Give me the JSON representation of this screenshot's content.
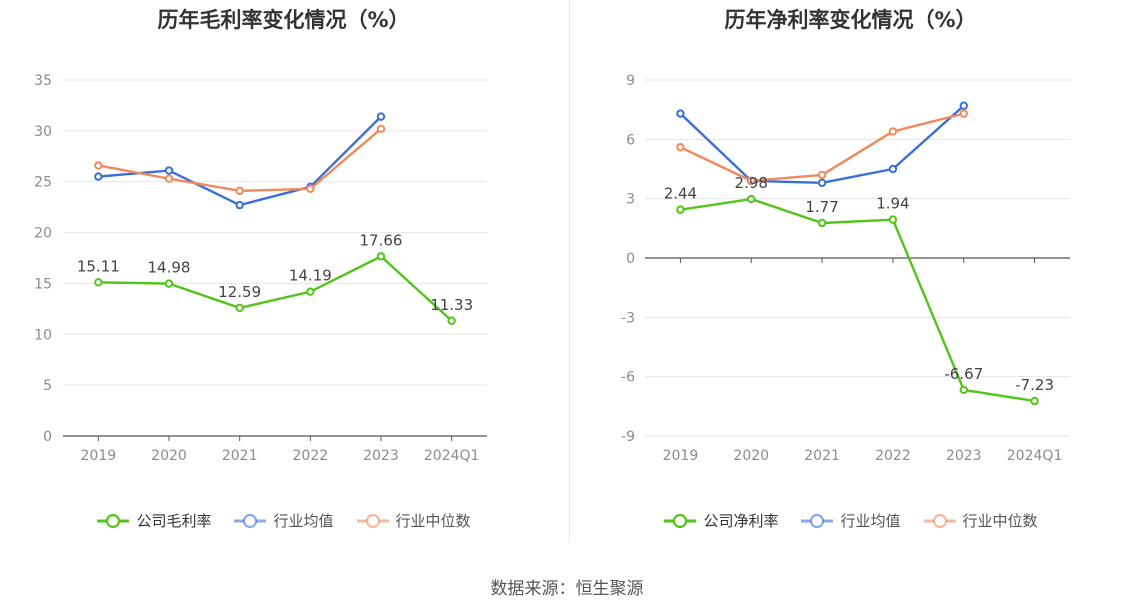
{
  "footer": {
    "source": "数据来源：恒生聚源"
  },
  "chart_data": [
    {
      "type": "line",
      "title": "历年毛利率变化情况（%）",
      "categories": [
        "2019",
        "2020",
        "2021",
        "2022",
        "2023",
        "2024Q1"
      ],
      "ylim": [
        0,
        35
      ],
      "yticks": [
        0,
        5,
        10,
        15,
        20,
        25,
        30,
        35
      ],
      "grid": true,
      "legend_position": "bottom",
      "series": [
        {
          "name": "公司毛利率",
          "color": "#52c41a",
          "values": [
            15.11,
            14.98,
            12.59,
            14.19,
            17.66,
            11.33
          ],
          "labels": [
            "15.11",
            "14.98",
            "12.59",
            "14.19",
            "17.66",
            "11.33"
          ]
        },
        {
          "name": "行业均值",
          "color": "#3b6fd8",
          "values": [
            25.5,
            26.1,
            22.7,
            24.5,
            31.4,
            null
          ]
        },
        {
          "name": "行业中位数",
          "color": "#f08a5d",
          "values": [
            26.6,
            25.3,
            24.1,
            24.3,
            30.2,
            null
          ]
        }
      ]
    },
    {
      "type": "line",
      "title": "历年净利率变化情况（%）",
      "categories": [
        "2019",
        "2020",
        "2021",
        "2022",
        "2023",
        "2024Q1"
      ],
      "ylim": [
        -9,
        9
      ],
      "yticks": [
        -9,
        -6,
        -3,
        0,
        3,
        6,
        9
      ],
      "grid": true,
      "legend_position": "bottom",
      "series": [
        {
          "name": "公司净利率",
          "color": "#52c41a",
          "values": [
            2.44,
            2.98,
            1.77,
            1.94,
            -6.67,
            -7.23
          ],
          "labels": [
            "2.44",
            "2.98",
            "1.77",
            "1.94",
            "-6.67",
            "-7.23"
          ]
        },
        {
          "name": "行业均值",
          "color": "#3b6fd8",
          "values": [
            7.3,
            3.9,
            3.8,
            4.5,
            7.7,
            null
          ]
        },
        {
          "name": "行业中位数",
          "color": "#f08a5d",
          "values": [
            5.6,
            3.9,
            4.2,
            6.4,
            7.3,
            null
          ]
        }
      ]
    }
  ]
}
